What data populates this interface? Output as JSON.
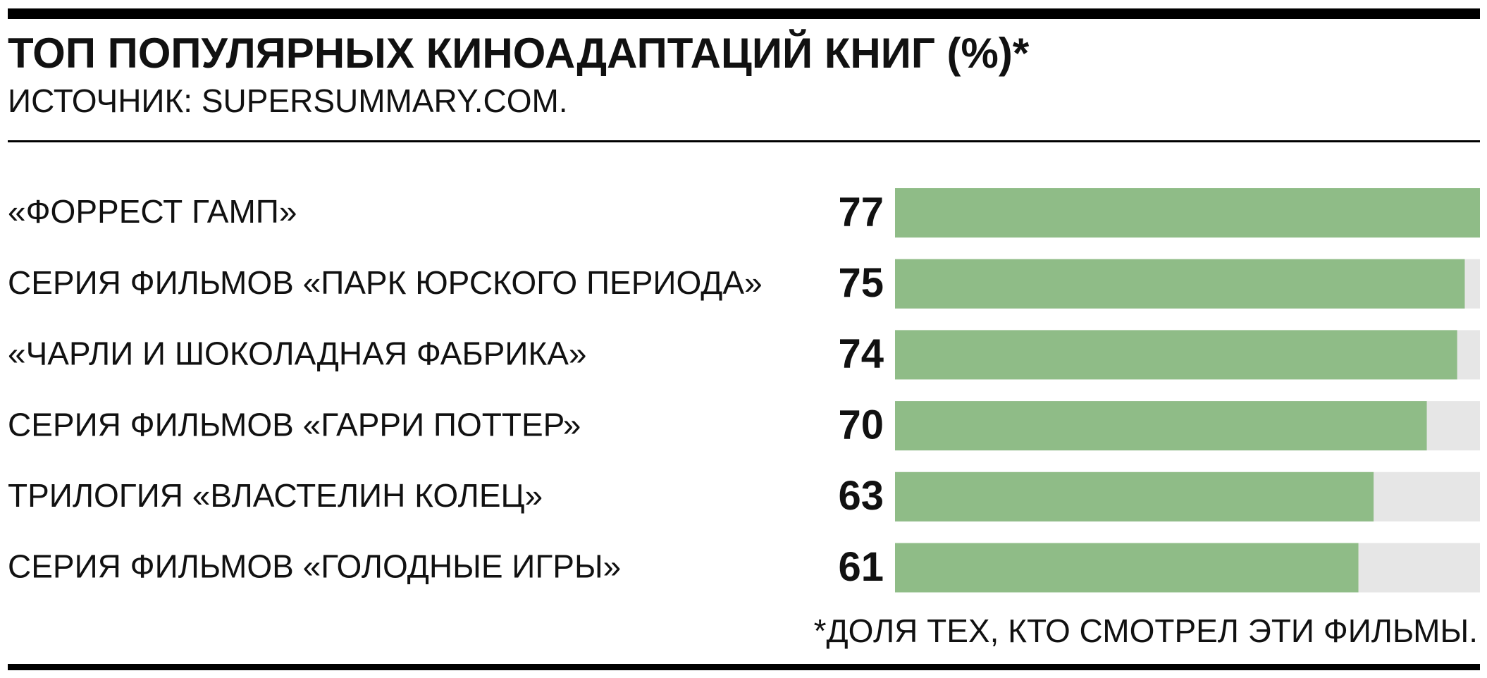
{
  "chart_data": {
    "type": "hbar",
    "title": "ТОП ПОПУЛЯРНЫХ КИНОАДАПТАЦИЙ КНИГ (%)*",
    "subtitle": "ИСТОЧНИК: SUPERSUMMARY.COM.",
    "note": "*ДОЛЯ ТЕХ, КТО СМОТРЕЛ ЭТИ ФИЛЬМЫ.",
    "categories": [
      "«ФОРРЕСТ ГАМП»",
      "СЕРИЯ ФИЛЬМОВ «ПАРК ЮРСКОГО ПЕРИОДА»",
      "«ЧАРЛИ И ШОКОЛАДНАЯ ФАБРИКА»",
      "СЕРИЯ ФИЛЬМОВ «ГАРРИ ПОТТЕР»",
      "ТРИЛОГИЯ «ВЛАСТЕЛИН КОЛЕЦ»",
      "СЕРИЯ ФИЛЬМОВ «ГОЛОДНЫЕ ИГРЫ»"
    ],
    "values": [
      77,
      75,
      74,
      70,
      63,
      61
    ],
    "color": "#8fbc87",
    "track_color": "#e6e6e6",
    "xlim": [
      0,
      77
    ]
  }
}
